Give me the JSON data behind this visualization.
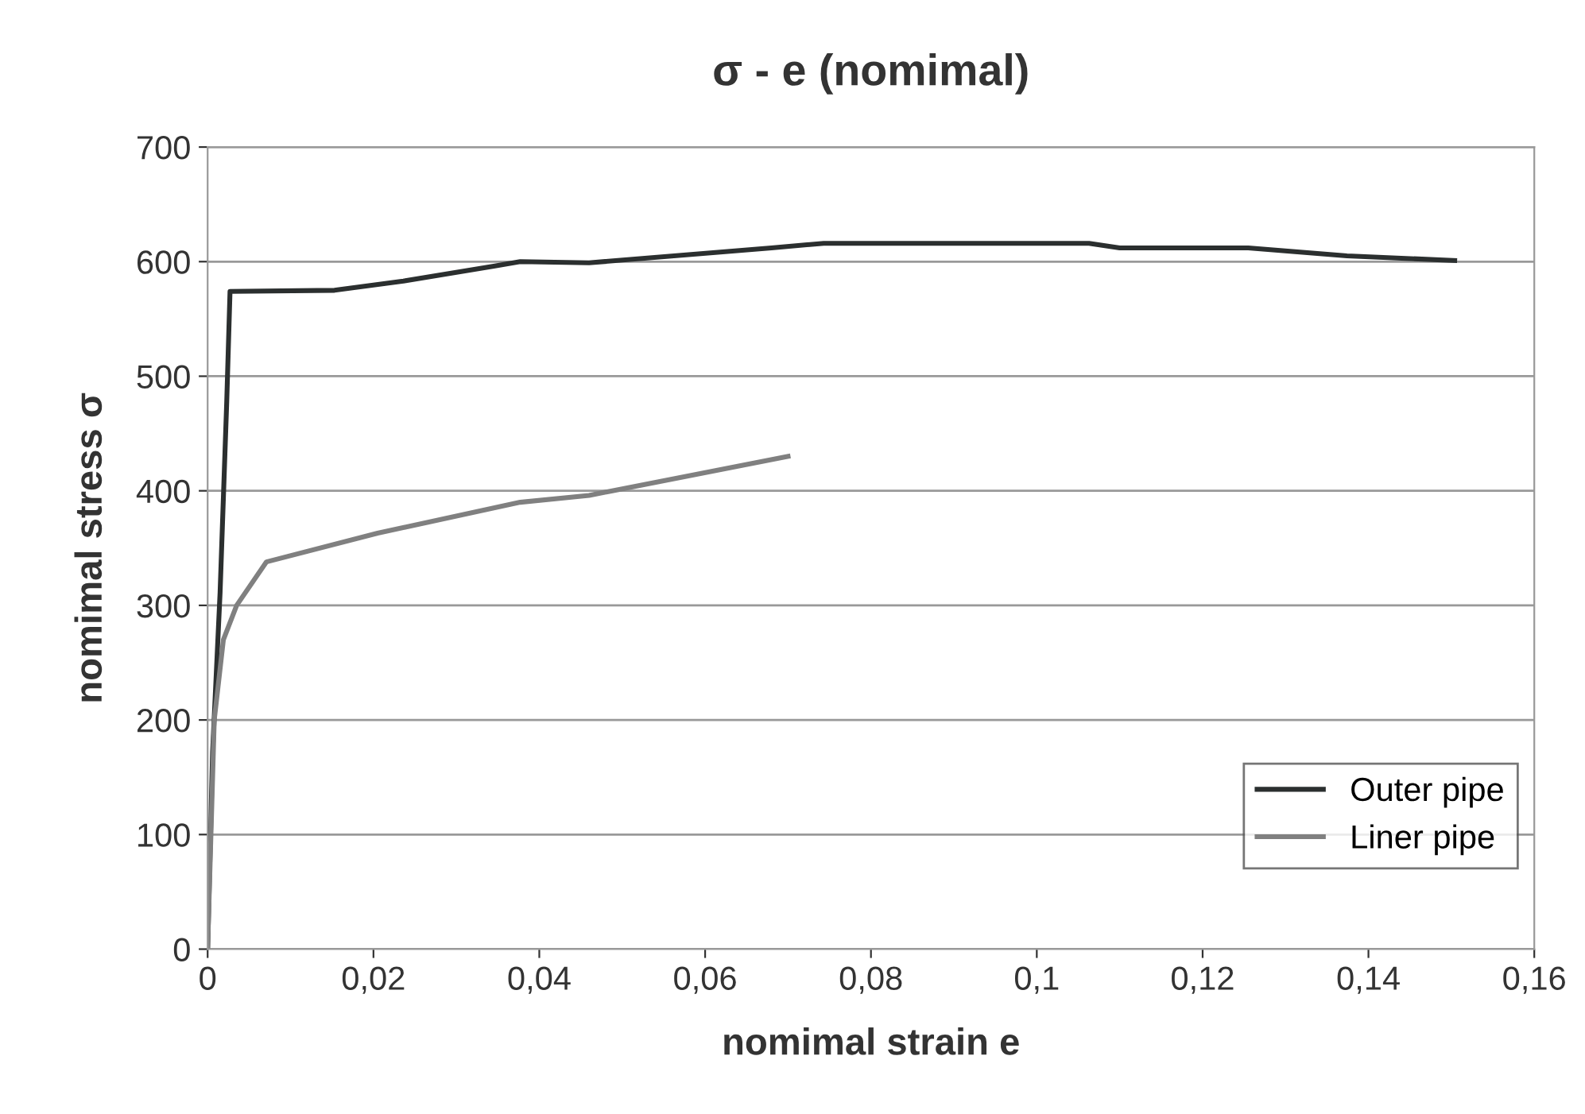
{
  "chart_data": {
    "type": "line",
    "title": "σ - e (nomimal)",
    "xlabel": "nomimal strain e",
    "ylabel": "nomimal stress σ",
    "xlim": [
      0,
      0.16
    ],
    "ylim": [
      0,
      700
    ],
    "xticks": [
      {
        "value": 0,
        "label": "0"
      },
      {
        "value": 0.02,
        "label": "0,02"
      },
      {
        "value": 0.04,
        "label": "0,04"
      },
      {
        "value": 0.06,
        "label": "0,06"
      },
      {
        "value": 0.08,
        "label": "0,08"
      },
      {
        "value": 0.1,
        "label": "0,1"
      },
      {
        "value": 0.12,
        "label": "0,12"
      },
      {
        "value": 0.14,
        "label": "0,14"
      },
      {
        "value": 0.16,
        "label": "0,16"
      }
    ],
    "yticks": [
      0,
      100,
      200,
      300,
      400,
      500,
      600,
      700
    ],
    "grid": "y",
    "legend": "bottom right",
    "series": [
      {
        "name": "Outer pipe",
        "color": "#2b2f2f",
        "x": [
          0,
          0.0006,
          0.0015,
          0.0023,
          0.0027,
          0.0153,
          0.0236,
          0.0345,
          0.0377,
          0.046,
          0.068,
          0.0743,
          0.1063,
          0.11,
          0.1255,
          0.1374,
          0.1504
        ],
        "values": [
          0,
          172,
          311,
          477,
          574,
          575,
          583,
          596,
          600,
          599,
          612,
          616,
          616,
          612,
          612,
          605,
          601
        ]
      },
      {
        "name": "Liner pipe",
        "color": "#808080",
        "x": [
          0,
          0.0008,
          0.0019,
          0.0035,
          0.0071,
          0.0205,
          0.0377,
          0.046,
          0.07
        ],
        "values": [
          0,
          200,
          270,
          300,
          338,
          363,
          390,
          396,
          430
        ]
      }
    ]
  }
}
